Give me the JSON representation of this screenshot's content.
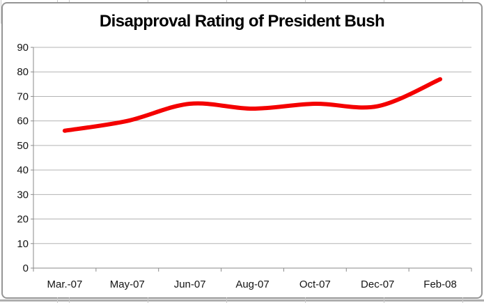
{
  "chart_data": {
    "type": "line",
    "title": "Disapproval Rating of President Bush",
    "categories": [
      "Mar.-07",
      "May-07",
      "Jun-07",
      "Aug-07",
      "Oct-07",
      "Dec-07",
      "Feb-08"
    ],
    "series": [
      {
        "values": [
          56,
          60,
          67,
          65,
          67,
          66,
          77
        ],
        "color": "#f40000",
        "smooth": true,
        "stroke_width": 6
      }
    ],
    "ylim": [
      0,
      90
    ],
    "yticks": [
      0,
      10,
      20,
      30,
      40,
      50,
      60,
      70,
      80,
      90
    ],
    "xlabel": "",
    "ylabel": "",
    "legend": "none",
    "grid": "horizontal",
    "styles": {
      "grid_color": "#b3b3b3",
      "axis_color": "#8a8a8a",
      "tick_label_color": "#141414",
      "title_color": "#000000",
      "frame_border_color": "#959595",
      "background": "#ffffff",
      "sheet_line_color": "#c9c9c9"
    }
  }
}
